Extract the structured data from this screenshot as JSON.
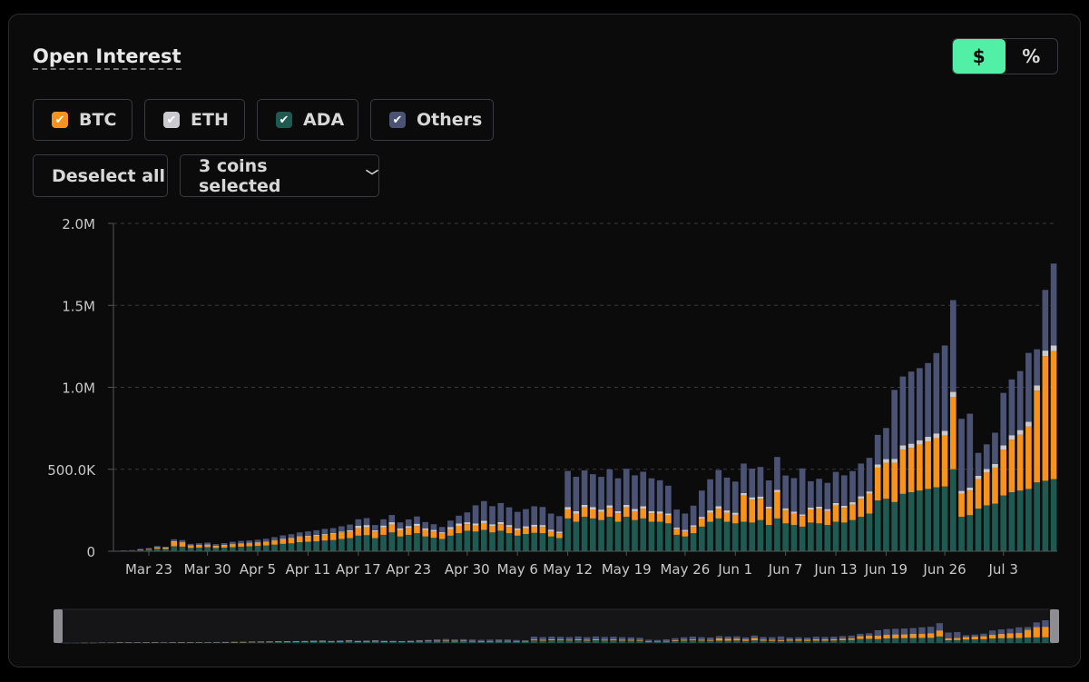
{
  "header": {
    "title": "Open Interest"
  },
  "toggle": {
    "dollar_label": "$",
    "percent_label": "%",
    "active": "dollar"
  },
  "filters": [
    {
      "label": "BTC",
      "color": "#f7931a",
      "checked": true
    },
    {
      "label": "ETH",
      "color": "#c9c9cf",
      "checked": true
    },
    {
      "label": "ADA",
      "color": "#1f5a52",
      "checked": true
    },
    {
      "label": "Others",
      "color": "#4a5374",
      "checked": true
    }
  ],
  "controls": {
    "deselect_label": "Deselect all",
    "coins_selected_label": "3 coins selected"
  },
  "chart_data": {
    "type": "bar",
    "stacked": true,
    "start_date": "2023-03-20",
    "y_ticks": [
      "0",
      "500.0K",
      "1.0M",
      "1.5M",
      "2.0M"
    ],
    "ylim": [
      0,
      2000000
    ],
    "x_tick_labels": [
      {
        "label": "Mar 23",
        "day": 3
      },
      {
        "label": "Mar 30",
        "day": 10
      },
      {
        "label": "Apr 5",
        "day": 16
      },
      {
        "label": "Apr 11",
        "day": 22
      },
      {
        "label": "Apr 17",
        "day": 28
      },
      {
        "label": "Apr 23",
        "day": 34
      },
      {
        "label": "Apr 30",
        "day": 41
      },
      {
        "label": "May 6",
        "day": 47
      },
      {
        "label": "May 12",
        "day": 53
      },
      {
        "label": "May 19",
        "day": 60
      },
      {
        "label": "May 26",
        "day": 67
      },
      {
        "label": "Jun 1",
        "day": 73
      },
      {
        "label": "Jun 7",
        "day": 79
      },
      {
        "label": "Jun 13",
        "day": 85
      },
      {
        "label": "Jun 19",
        "day": 91
      },
      {
        "label": "Jun 26",
        "day": 98
      },
      {
        "label": "Jul 3",
        "day": 105
      }
    ],
    "grid": true,
    "legend": "top-left",
    "series": [
      {
        "name": "ADA",
        "color": "#1f5a52",
        "values": [
          3000,
          4000,
          8000,
          10000,
          15000,
          14000,
          30000,
          28000,
          20000,
          22000,
          25000,
          20000,
          22000,
          25000,
          28000,
          30000,
          32000,
          35000,
          40000,
          45000,
          48000,
          55000,
          58000,
          60000,
          65000,
          68000,
          75000,
          80000,
          95000,
          98000,
          80000,
          100000,
          115000,
          90000,
          100000,
          110000,
          90000,
          82000,
          75000,
          95000,
          110000,
          125000,
          120000,
          130000,
          115000,
          125000,
          110000,
          95000,
          105000,
          112000,
          110000,
          90000,
          80000,
          200000,
          180000,
          210000,
          200000,
          190000,
          210000,
          180000,
          210000,
          190000,
          200000,
          180000,
          180000,
          170000,
          100000,
          90000,
          110000,
          150000,
          180000,
          200000,
          180000,
          170000,
          180000,
          175000,
          190000,
          160000,
          200000,
          170000,
          160000,
          150000,
          175000,
          170000,
          160000,
          180000,
          175000,
          190000,
          210000,
          230000,
          310000,
          320000,
          300000,
          350000,
          360000,
          370000,
          380000,
          390000,
          395000,
          500000,
          210000,
          220000,
          260000,
          280000,
          290000,
          340000,
          360000,
          370000,
          380000,
          420000,
          430000,
          440000
        ]
      },
      {
        "name": "BTC",
        "color": "#f7931a",
        "values": [
          0,
          0,
          3000,
          4000,
          8000,
          7000,
          28000,
          26000,
          15000,
          16000,
          14000,
          12000,
          15000,
          18000,
          18000,
          19000,
          20000,
          22000,
          25000,
          28000,
          30000,
          32000,
          33000,
          35000,
          36000,
          38000,
          40000,
          42000,
          45000,
          48000,
          40000,
          45000,
          48000,
          40000,
          42000,
          44000,
          40000,
          38000,
          32000,
          40000,
          45000,
          40000,
          38000,
          42000,
          38000,
          40000,
          38000,
          35000,
          36000,
          38000,
          38000,
          32000,
          30000,
          55000,
          50000,
          58000,
          55000,
          50000,
          55000,
          52000,
          58000,
          54000,
          60000,
          52000,
          50000,
          48000,
          35000,
          32000,
          38000,
          48000,
          55000,
          60000,
          55000,
          52000,
          160000,
          140000,
          130000,
          100000,
          160000,
          80000,
          70000,
          65000,
          80000,
          90000,
          85000,
          100000,
          90000,
          95000,
          110000,
          120000,
          200000,
          220000,
          240000,
          270000,
          270000,
          280000,
          290000,
          300000,
          310000,
          440000,
          140000,
          150000,
          180000,
          200000,
          220000,
          280000,
          320000,
          340000,
          380000,
          560000,
          760000,
          780000
        ]
      },
      {
        "name": "ETH",
        "color": "#c9c9cf",
        "values": [
          0,
          0,
          0,
          0,
          1000,
          1000,
          3000,
          3000,
          2000,
          2000,
          2000,
          2000,
          2000,
          3000,
          3000,
          3000,
          3000,
          3000,
          3000,
          4000,
          4000,
          4000,
          4000,
          5000,
          5000,
          5000,
          5000,
          6000,
          15000,
          14000,
          8000,
          12000,
          14000,
          10000,
          12000,
          14000,
          10000,
          10000,
          9000,
          12000,
          14000,
          12000,
          12000,
          14000,
          12000,
          13000,
          12000,
          10000,
          11000,
          12000,
          12000,
          10000,
          9000,
          15000,
          14000,
          15000,
          15000,
          14000,
          15000,
          13000,
          15000,
          14000,
          15000,
          13000,
          13000,
          12000,
          9000,
          8000,
          10000,
          12000,
          14000,
          15000,
          14000,
          13000,
          15000,
          14000,
          14000,
          12000,
          15000,
          12000,
          11000,
          10000,
          12000,
          12000,
          12000,
          14000,
          13000,
          14000,
          15000,
          15000,
          20000,
          22000,
          24000,
          26000,
          26000,
          27000,
          28000,
          29000,
          30000,
          32000,
          18000,
          19000,
          20000,
          22000,
          23000,
          26000,
          28000,
          29000,
          30000,
          32000,
          34000,
          35000
        ]
      },
      {
        "name": "Others",
        "color": "#4a5374",
        "values": [
          2000,
          3000,
          4000,
          5000,
          8000,
          6000,
          12000,
          11000,
          8000,
          9000,
          12000,
          10000,
          11000,
          12000,
          14000,
          14000,
          15000,
          16000,
          18000,
          20000,
          22000,
          24000,
          26000,
          28000,
          30000,
          30000,
          32000,
          35000,
          40000,
          42000,
          32000,
          38000,
          44000,
          36000,
          40000,
          44000,
          38000,
          35000,
          32000,
          40000,
          48000,
          60000,
          110000,
          120000,
          110000,
          116000,
          108000,
          100000,
          105000,
          112000,
          110000,
          98000,
          95000,
          220000,
          210000,
          210000,
          200000,
          200000,
          220000,
          200000,
          220000,
          205000,
          210000,
          200000,
          190000,
          170000,
          110000,
          100000,
          120000,
          160000,
          190000,
          220000,
          200000,
          190000,
          180000,
          175000,
          180000,
          160000,
          200000,
          200000,
          205000,
          280000,
          160000,
          170000,
          160000,
          190000,
          185000,
          190000,
          200000,
          205000,
          180000,
          190000,
          420000,
          420000,
          440000,
          440000,
          450000,
          490000,
          520000,
          560000,
          440000,
          450000,
          140000,
          150000,
          190000,
          320000,
          340000,
          360000,
          420000,
          220000,
          370000,
          500000
        ]
      }
    ]
  }
}
